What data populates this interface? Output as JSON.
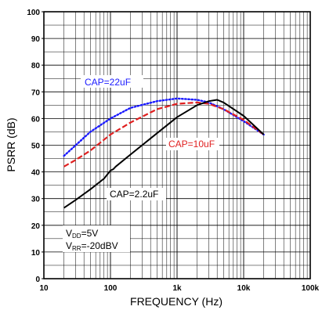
{
  "chart_data": {
    "type": "line",
    "title": "",
    "xlabel": "FREQUENCY (Hz)",
    "ylabel": "PSRR (dB)",
    "x_scale": "log",
    "xlim": [
      10,
      100000
    ],
    "ylim": [
      0,
      100
    ],
    "grid": true,
    "x_tick_values": [
      10,
      100,
      1000,
      10000,
      100000
    ],
    "x_tick_labels": [
      "10",
      "100",
      "1k",
      "10k",
      "100k"
    ],
    "y_tick_values": [
      0,
      10,
      20,
      30,
      40,
      50,
      60,
      70,
      80,
      90,
      100
    ],
    "y_tick_labels": [
      "0",
      "10",
      "20",
      "30",
      "40",
      "50",
      "60",
      "70",
      "80",
      "90",
      "100"
    ],
    "series": [
      {
        "name": "CAP=22uF",
        "color": "#1a1aff",
        "dash": "dotted",
        "x": [
          20,
          30,
          50,
          100,
          200,
          500,
          1000,
          2000,
          3000,
          5000,
          10000,
          20000
        ],
        "y": [
          46,
          50,
          55,
          60,
          64,
          66.5,
          67.5,
          67,
          66,
          63.5,
          59,
          54
        ]
      },
      {
        "name": "CAP=10uF",
        "color": "#e02020",
        "dash": "dashed",
        "x": [
          20,
          30,
          50,
          100,
          200,
          500,
          1000,
          2000,
          3000,
          5000,
          10000,
          20000
        ],
        "y": [
          42,
          44.5,
          48,
          54,
          58.5,
          63.5,
          65.5,
          66,
          65.5,
          63.5,
          59.5,
          54
        ]
      },
      {
        "name": "CAP=2.2uF",
        "color": "#000000",
        "dash": "solid",
        "x": [
          20,
          30,
          50,
          80,
          100,
          110,
          120,
          200,
          500,
          1000,
          2000,
          3000,
          4000,
          5000,
          10000,
          20000
        ],
        "y": [
          26.5,
          29.5,
          33.5,
          37.5,
          40.5,
          41,
          42,
          46.5,
          54.5,
          60.5,
          65,
          66.5,
          67,
          66,
          61,
          54
        ]
      }
    ],
    "annotations": {
      "cap22": "CAP=22uF",
      "cap10": "CAP=10uF",
      "cap22small": "CAP=2.2uF",
      "vdd_main": "V",
      "vdd_sub": "DD",
      "vdd_val": "=5V",
      "vrr_main": "V",
      "vrr_sub": "RR",
      "vrr_val": "=-20dBV"
    }
  }
}
